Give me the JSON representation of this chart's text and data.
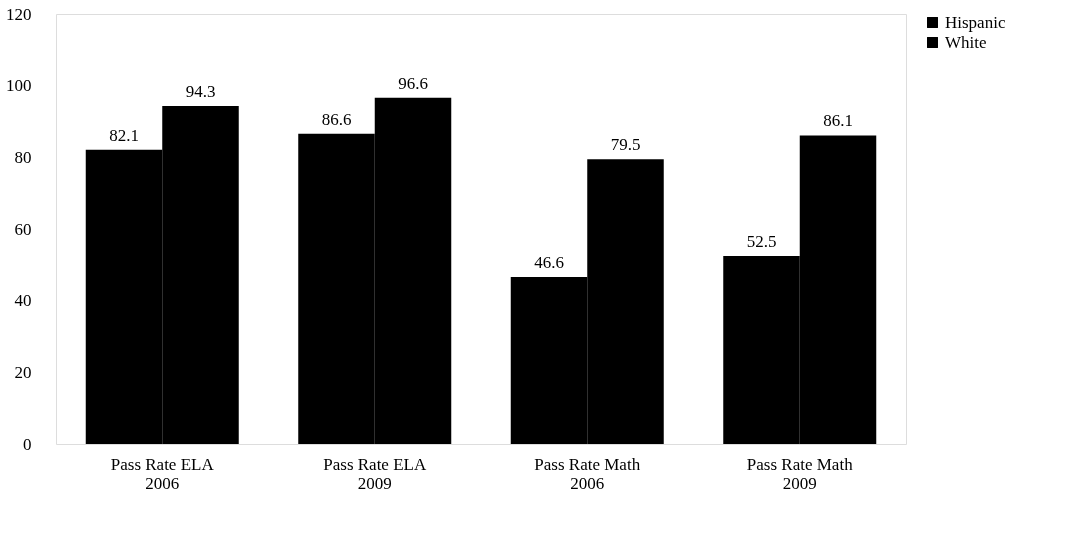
{
  "chart_data": {
    "type": "bar",
    "categories": [
      "Pass Rate ELA\n2006",
      "Pass Rate ELA\n2009",
      "Pass Rate Math\n2006",
      "Pass Rate Math\n2009"
    ],
    "series": [
      {
        "name": "Hispanic",
        "color": "#000000",
        "values": [
          82.1,
          86.6,
          46.6,
          52.5
        ]
      },
      {
        "name": "White",
        "color": "#000000",
        "values": [
          94.3,
          96.6,
          79.5,
          86.1
        ]
      }
    ],
    "ylim": [
      0,
      120
    ],
    "yticks": [
      0,
      20,
      40,
      60,
      80,
      100,
      120
    ],
    "data_labels": true,
    "grid": false,
    "legend": "right"
  }
}
